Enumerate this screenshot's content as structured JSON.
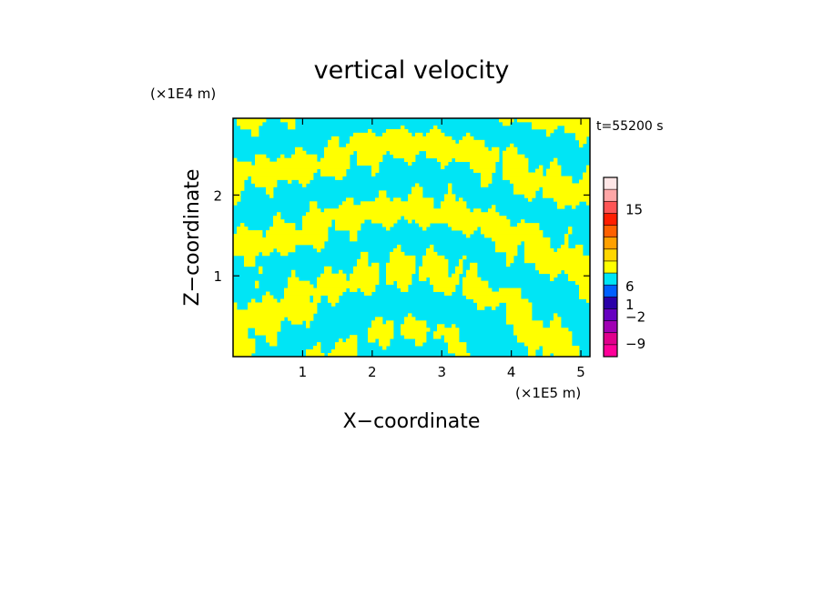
{
  "chart_data": {
    "type": "heatmap",
    "title": "vertical velocity",
    "xlabel": "X−coordinate",
    "ylabel": "Z−coordinate",
    "x_unit": "(×1E5 m)",
    "y_unit": "(×1E4 m)",
    "time_label": "t=55200 s",
    "xlim": [
      0,
      5.13
    ],
    "ylim": [
      0,
      2.95
    ],
    "x_ticks": [
      1,
      2,
      3,
      4,
      5
    ],
    "y_ticks": [
      1,
      2
    ],
    "x_tick_labels": [
      "1",
      "2",
      "3",
      "4",
      "5"
    ],
    "y_tick_labels": [
      "1",
      "2"
    ],
    "fill_colors": {
      "positive": "#ffff00",
      "negative": "#00e5f5"
    },
    "colorbar": {
      "levels": [
        {
          "color": "#ff0099"
        },
        {
          "color": "#e0008c"
        },
        {
          "color": "#a000b4"
        },
        {
          "color": "#6600c0"
        },
        {
          "color": "#2a00a8"
        },
        {
          "color": "#0060ff"
        },
        {
          "color": "#00e5f5"
        },
        {
          "color": "#ffff00"
        },
        {
          "color": "#ffd600"
        },
        {
          "color": "#ffa000"
        },
        {
          "color": "#ff6000"
        },
        {
          "color": "#ff1e00"
        },
        {
          "color": "#ff5555"
        },
        {
          "color": "#ffa6a6"
        },
        {
          "color": "#ffe6e6"
        }
      ],
      "tick_labels": [
        {
          "label": "15",
          "pos": 0.82
        },
        {
          "label": "6",
          "pos": 0.39
        },
        {
          "label": "1",
          "pos": 0.29
        },
        {
          "label": "−2",
          "pos": 0.22
        },
        {
          "label": "−9",
          "pos": 0.07
        }
      ]
    }
  }
}
